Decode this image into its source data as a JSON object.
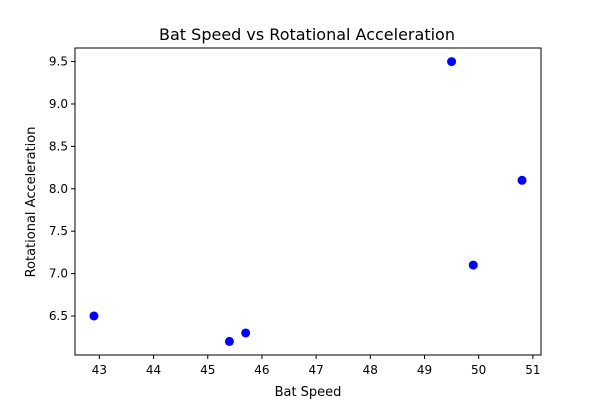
{
  "chart_data": {
    "type": "scatter",
    "title": "Bat Speed vs Rotational Acceleration",
    "xlabel": "Bat Speed",
    "ylabel": "Rotational Acceleration",
    "xlim": [
      42.55,
      51.15
    ],
    "ylim": [
      6.04,
      9.66
    ],
    "xticks": [
      43,
      44,
      45,
      46,
      47,
      48,
      49,
      50,
      51
    ],
    "yticks": [
      6.5,
      7.0,
      7.5,
      8.0,
      8.5,
      9.0,
      9.5
    ],
    "xtick_labels": [
      "43",
      "44",
      "45",
      "46",
      "47",
      "48",
      "49",
      "50",
      "51"
    ],
    "ytick_labels": [
      "6.5",
      "7.0",
      "7.5",
      "8.0",
      "8.5",
      "9.0",
      "9.5"
    ],
    "grid": false,
    "marker_color": "#0000ff",
    "series": [
      {
        "points": [
          {
            "x": 42.9,
            "y": 6.5
          },
          {
            "x": 45.4,
            "y": 6.2
          },
          {
            "x": 45.7,
            "y": 6.3
          },
          {
            "x": 49.5,
            "y": 9.5
          },
          {
            "x": 49.9,
            "y": 7.1
          },
          {
            "x": 50.8,
            "y": 8.1
          }
        ]
      }
    ]
  }
}
